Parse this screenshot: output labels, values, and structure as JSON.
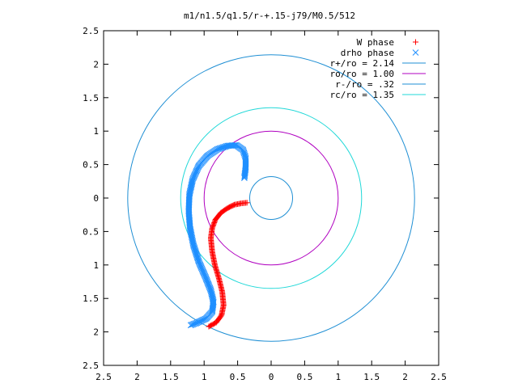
{
  "chart_data": {
    "type": "scatter",
    "title": "m1/n1.5/q1.5/r-+.15-j79/M0.5/512",
    "xlabel": "",
    "ylabel": "",
    "xlim": [
      -2.5,
      2.5
    ],
    "ylim": [
      -2.5,
      2.5
    ],
    "x_tick_values": [
      -2.5,
      -2,
      -1.5,
      -1,
      -0.5,
      0,
      0.5,
      1,
      1.5,
      2,
      2.5
    ],
    "x_tick_labels": [
      "2.5",
      "2",
      "1.5",
      "1",
      "0.5",
      "0",
      "0.5",
      "1",
      "1.5",
      "2",
      "2.5"
    ],
    "y_tick_values": [
      2.5,
      2,
      1.5,
      1,
      0.5,
      0,
      -0.5,
      -1,
      -1.5,
      -2,
      -2.5
    ],
    "y_tick_labels": [
      "2.5",
      "2",
      "1.5",
      "1",
      "0.5",
      "0",
      "0.5",
      "1",
      "1.5",
      "2",
      "2.5"
    ],
    "grid": false,
    "legend_position": "top-right",
    "series": [
      {
        "name": "W phase",
        "kind": "points",
        "marker": "plus",
        "color": "#ff0000",
        "path": [
          [
            -0.36,
            -0.07
          ],
          [
            -0.45,
            -0.08
          ],
          [
            -0.55,
            -0.1
          ],
          [
            -0.65,
            -0.15
          ],
          [
            -0.75,
            -0.22
          ],
          [
            -0.83,
            -0.32
          ],
          [
            -0.88,
            -0.45
          ],
          [
            -0.9,
            -0.6
          ],
          [
            -0.88,
            -0.8
          ],
          [
            -0.84,
            -1.0
          ],
          [
            -0.78,
            -1.2
          ],
          [
            -0.73,
            -1.4
          ],
          [
            -0.71,
            -1.6
          ],
          [
            -0.74,
            -1.75
          ],
          [
            -0.82,
            -1.86
          ],
          [
            -0.93,
            -1.92
          ]
        ]
      },
      {
        "name": "drho phase",
        "kind": "points",
        "marker": "cross",
        "color": "#1f8fff",
        "path": [
          [
            -0.4,
            0.3
          ],
          [
            -0.38,
            0.45
          ],
          [
            -0.38,
            0.6
          ],
          [
            -0.42,
            0.72
          ],
          [
            -0.52,
            0.79
          ],
          [
            -0.65,
            0.78
          ],
          [
            -0.8,
            0.73
          ],
          [
            -0.95,
            0.63
          ],
          [
            -1.08,
            0.48
          ],
          [
            -1.17,
            0.28
          ],
          [
            -1.22,
            0.05
          ],
          [
            -1.23,
            -0.2
          ],
          [
            -1.21,
            -0.45
          ],
          [
            -1.16,
            -0.7
          ],
          [
            -1.08,
            -0.95
          ],
          [
            -0.98,
            -1.18
          ],
          [
            -0.9,
            -1.38
          ],
          [
            -0.86,
            -1.55
          ],
          [
            -0.88,
            -1.7
          ],
          [
            -0.97,
            -1.8
          ],
          [
            -1.12,
            -1.87
          ],
          [
            -1.2,
            -1.9
          ]
        ]
      },
      {
        "name": "r+/ro = 2.14",
        "kind": "circle",
        "radius": 2.14,
        "color": "#1f8fd4"
      },
      {
        "name": "ro/ro = 1.00",
        "kind": "circle",
        "radius": 1.0,
        "color": "#b000c0"
      },
      {
        "name": "r-/ro = .32",
        "kind": "circle",
        "radius": 0.32,
        "color": "#1f8fd4"
      },
      {
        "name": "rc/ro = 1.35",
        "kind": "circle",
        "radius": 1.35,
        "color": "#20d8d8"
      }
    ]
  }
}
